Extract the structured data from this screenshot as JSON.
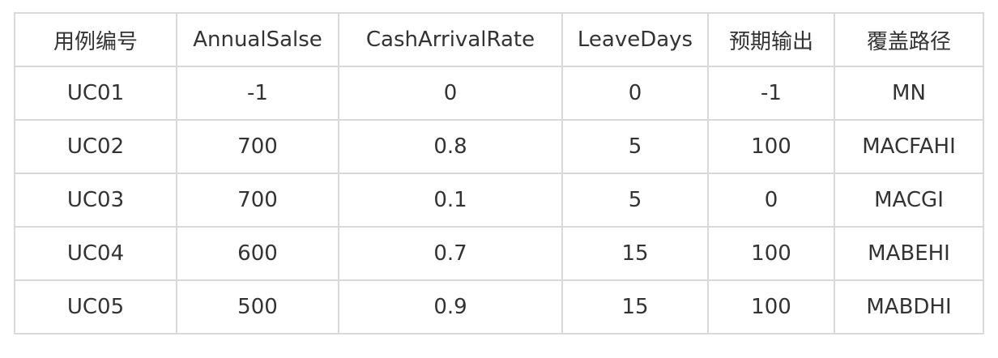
{
  "table": {
    "headers": [
      "用例编号",
      "AnnualSalse",
      "CashArrivalRate",
      "LeaveDays",
      "预期输出",
      "覆盖路径"
    ],
    "rows": [
      [
        "UC01",
        "-1",
        "0",
        "0",
        "-1",
        "MN"
      ],
      [
        "UC02",
        "700",
        "0.8",
        "5",
        "100",
        "MACFAHI"
      ],
      [
        "UC03",
        "700",
        "0.1",
        "5",
        "0",
        "MACGI"
      ],
      [
        "UC04",
        "600",
        "0.7",
        "15",
        "100",
        "MABEHI"
      ],
      [
        "UC05",
        "500",
        "0.9",
        "15",
        "100",
        "MABDHI"
      ]
    ]
  }
}
